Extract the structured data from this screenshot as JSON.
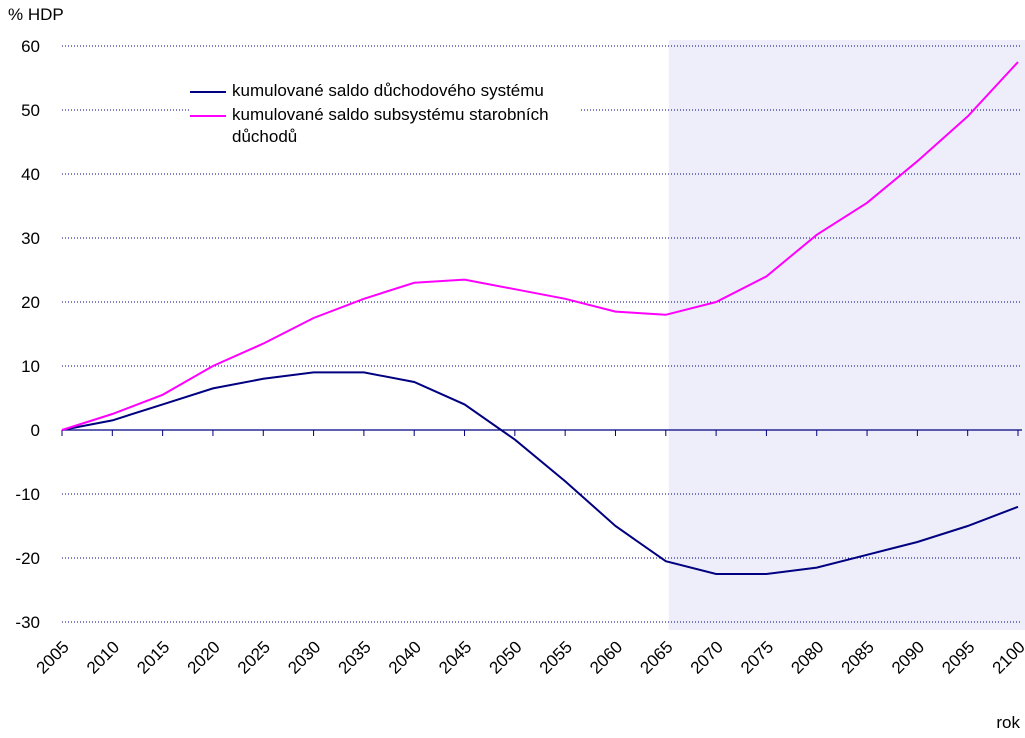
{
  "chart_data": {
    "type": "line",
    "y_axis_label": "% HDP",
    "x_axis_label": "rok",
    "x": [
      2005,
      2010,
      2015,
      2020,
      2025,
      2030,
      2035,
      2040,
      2045,
      2050,
      2055,
      2060,
      2065,
      2070,
      2075,
      2080,
      2085,
      2090,
      2095,
      2100
    ],
    "series": [
      {
        "name": "kumulované saldo důchodového systému",
        "color": "#000080",
        "values": [
          0,
          1.5,
          4,
          6.5,
          8,
          9,
          9,
          7.5,
          4,
          -1.5,
          -8,
          -15,
          -20.5,
          -22.5,
          -22.5,
          -21.5,
          -19.5,
          -17.5,
          -15,
          -12
        ]
      },
      {
        "name": "kumulované saldo subsystému starobních důchodů",
        "color": "#ff00ff",
        "values": [
          0,
          2.5,
          5.5,
          10,
          13.5,
          17.5,
          20.5,
          23,
          23.5,
          22,
          20.5,
          18.5,
          18,
          20,
          24,
          30.5,
          35.5,
          42,
          49,
          57.5
        ]
      }
    ],
    "xlim": [
      2005,
      2100
    ],
    "xticks": [
      2005,
      2010,
      2015,
      2020,
      2025,
      2030,
      2035,
      2040,
      2045,
      2050,
      2055,
      2060,
      2065,
      2070,
      2075,
      2080,
      2085,
      2090,
      2095,
      2100
    ],
    "ylim": [
      -30,
      60
    ],
    "yticks": [
      -30,
      -20,
      -10,
      0,
      10,
      20,
      30,
      40,
      50,
      60
    ],
    "grid": true,
    "shaded_region": [
      2065.3,
      2100.7
    ],
    "shade_color": "#eeeefa",
    "legend": "upper left"
  }
}
